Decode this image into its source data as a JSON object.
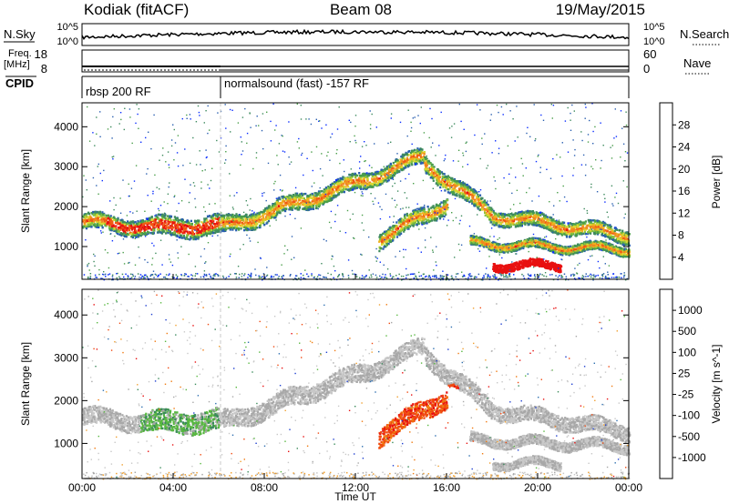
{
  "header": {
    "radar": "Kodiak (fitACF)",
    "beam": "Beam 08",
    "date": "19/May/2015"
  },
  "panels": {
    "nsky_label": "N.Sky",
    "nsearch_label": "N.Search",
    "freq_label_1": "Freq.",
    "freq_label_2": "[MHz]",
    "nave_label": "Nave",
    "cpid_label": "CPID",
    "cpid_mode_1": "rbsp 200 RF",
    "cpid_mode_2": "normalsound (fast) -157 RF",
    "noise_ticks": [
      "10^5",
      "10^0"
    ],
    "freq_ticks": [
      "18",
      "8"
    ],
    "nave_ticks": [
      "60",
      "0"
    ]
  },
  "colors": {
    "power": [
      "#0a2dff",
      "#2a5fb0",
      "#3e8a5e",
      "#4a9e4a",
      "#86c23e",
      "#d8d830",
      "#f0b020",
      "#f08820",
      "#f05a14",
      "#e81010"
    ],
    "velocity": [
      "#1f3fd0",
      "#2e6fb0",
      "#3a8a5a",
      "#58b840",
      "#a8a8a8",
      "#c8c8c8",
      "#f0a030",
      "#f07a10",
      "#f04a10",
      "#e81010"
    ]
  },
  "chart_data": [
    {
      "type": "heatmap",
      "name": "Power",
      "ylabel": "Slant Range [km]",
      "colorbar_label": "Power [dB]",
      "colorbar_ticks": [
        4,
        8,
        12,
        16,
        20,
        24,
        28
      ],
      "ylim": [
        180,
        4600
      ],
      "y_ticks": [
        1000,
        2000,
        3000,
        4000
      ],
      "xlim": [
        0,
        24
      ],
      "x_ticks": [
        "00:00",
        "04:00",
        "08:00",
        "12:00",
        "16:00",
        "20:00",
        "00:00"
      ],
      "xlabel": "Time UT"
    },
    {
      "type": "heatmap",
      "name": "Velocity",
      "ylabel": "Slant Range [km]",
      "colorbar_label": "Velocity [m s^-1]",
      "colorbar_ticks": [
        1000,
        500,
        100,
        25,
        -25,
        -100,
        -500,
        -1000
      ],
      "ylim": [
        180,
        4600
      ],
      "y_ticks": [
        1000,
        2000,
        3000,
        4000
      ],
      "xlim": [
        0,
        24
      ],
      "x_ticks": [
        "00:00",
        "04:00",
        "08:00",
        "12:00",
        "16:00",
        "20:00",
        "00:00"
      ],
      "xlabel": "Time UT"
    }
  ]
}
